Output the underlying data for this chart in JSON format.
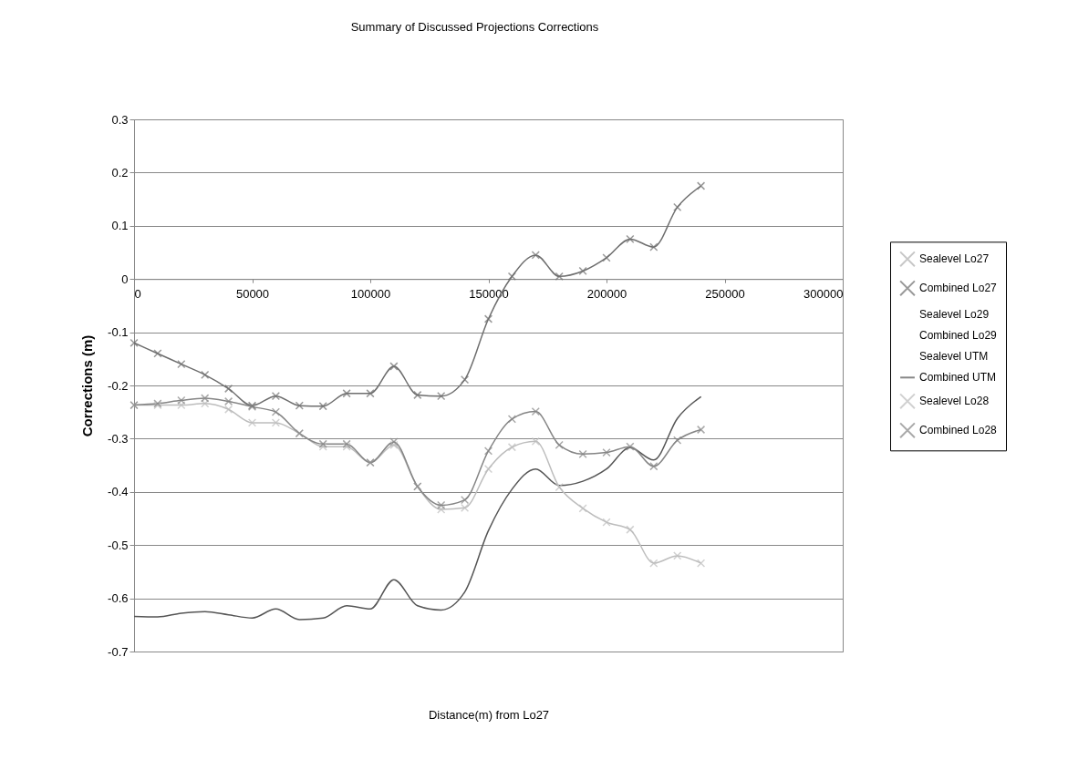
{
  "chart_data": {
    "type": "line",
    "title": "Summary of Discussed Projections Corrections",
    "xlabel": "Distance(m) from Lo27",
    "ylabel": "Corrections (m)",
    "x": [
      0,
      10000,
      20000,
      30000,
      40000,
      50000,
      60000,
      70000,
      80000,
      90000,
      100000,
      110000,
      120000,
      130000,
      140000,
      150000,
      160000,
      170000,
      180000,
      190000,
      200000,
      210000,
      220000,
      230000,
      240000
    ],
    "xlim": [
      0,
      300000
    ],
    "xticks": [
      0,
      50000,
      100000,
      150000,
      200000,
      250000,
      300000
    ],
    "ylim": [
      -0.7,
      0.3
    ],
    "yticks": [
      -0.7,
      -0.6,
      -0.5,
      -0.4,
      -0.3,
      -0.2,
      -0.1,
      0,
      0.1,
      0.2,
      0.3
    ],
    "grid": "y",
    "legend": "right",
    "series": [
      {
        "name": "Sealevel Lo27",
        "color": "#b0b0b0",
        "marker": "cross",
        "values": [
          null,
          null,
          null,
          null,
          null,
          null,
          null,
          null,
          null,
          null,
          null,
          null,
          null,
          null,
          null,
          null,
          null,
          null,
          null,
          null,
          null,
          null,
          null,
          null,
          null
        ]
      },
      {
        "name": "Combined Lo27",
        "color": "#6e6e6e",
        "marker": "cross",
        "values": [
          -0.12,
          -0.14,
          -0.16,
          -0.18,
          -0.206,
          -0.238,
          -0.22,
          -0.238,
          -0.239,
          -0.215,
          -0.215,
          -0.164,
          -0.218,
          -0.22,
          -0.189,
          -0.075,
          0.005,
          0.045,
          0.005,
          0.015,
          0.04,
          0.075,
          0.06,
          0.135,
          0.175
        ]
      },
      {
        "name": "Sealevel Lo29",
        "marker": "none",
        "values": [
          null,
          null,
          null,
          null,
          null,
          null,
          null,
          null,
          null,
          null,
          null,
          null,
          null,
          null,
          null,
          null,
          null,
          null,
          null,
          null,
          null,
          null,
          null,
          null,
          null
        ]
      },
      {
        "name": "Combined Lo29",
        "marker": "none",
        "values": [
          null,
          null,
          null,
          null,
          null,
          null,
          null,
          null,
          null,
          null,
          null,
          null,
          null,
          null,
          null,
          null,
          null,
          null,
          null,
          null,
          null,
          null,
          null,
          null,
          null
        ]
      },
      {
        "name": "Sealevel UTM",
        "marker": "none",
        "values": [
          null,
          null,
          null,
          null,
          null,
          null,
          null,
          null,
          null,
          null,
          null,
          null,
          null,
          null,
          null,
          null,
          null,
          null,
          null,
          null,
          null,
          null,
          null,
          null,
          null
        ]
      },
      {
        "name": "Combined UTM",
        "color": "#555555",
        "marker": "none",
        "values": [
          -0.634,
          -0.635,
          -0.628,
          -0.625,
          -0.631,
          -0.637,
          -0.62,
          -0.64,
          -0.637,
          -0.614,
          -0.62,
          -0.565,
          -0.614,
          -0.622,
          -0.588,
          -0.473,
          -0.395,
          -0.357,
          -0.388,
          -0.38,
          -0.357,
          -0.317,
          -0.34,
          -0.262,
          -0.221
        ]
      },
      {
        "name": "Sealevel Lo28",
        "color": "#bdbdbd",
        "marker": "cross",
        "values": [
          -0.237,
          -0.237,
          -0.237,
          -0.234,
          -0.245,
          -0.27,
          -0.27,
          -0.29,
          -0.315,
          -0.315,
          -0.345,
          -0.312,
          -0.39,
          -0.433,
          -0.43,
          -0.357,
          -0.316,
          -0.305,
          -0.391,
          -0.431,
          -0.457,
          -0.471,
          -0.534,
          -0.52,
          -0.534
        ]
      },
      {
        "name": "Combined Lo28",
        "color": "#858585",
        "marker": "cross",
        "values": [
          -0.237,
          -0.234,
          -0.228,
          -0.224,
          -0.23,
          -0.24,
          -0.25,
          -0.29,
          -0.31,
          -0.31,
          -0.345,
          -0.306,
          -0.39,
          -0.425,
          -0.415,
          -0.323,
          -0.263,
          -0.249,
          -0.312,
          -0.329,
          -0.326,
          -0.315,
          -0.352,
          -0.303,
          -0.283
        ]
      }
    ]
  }
}
